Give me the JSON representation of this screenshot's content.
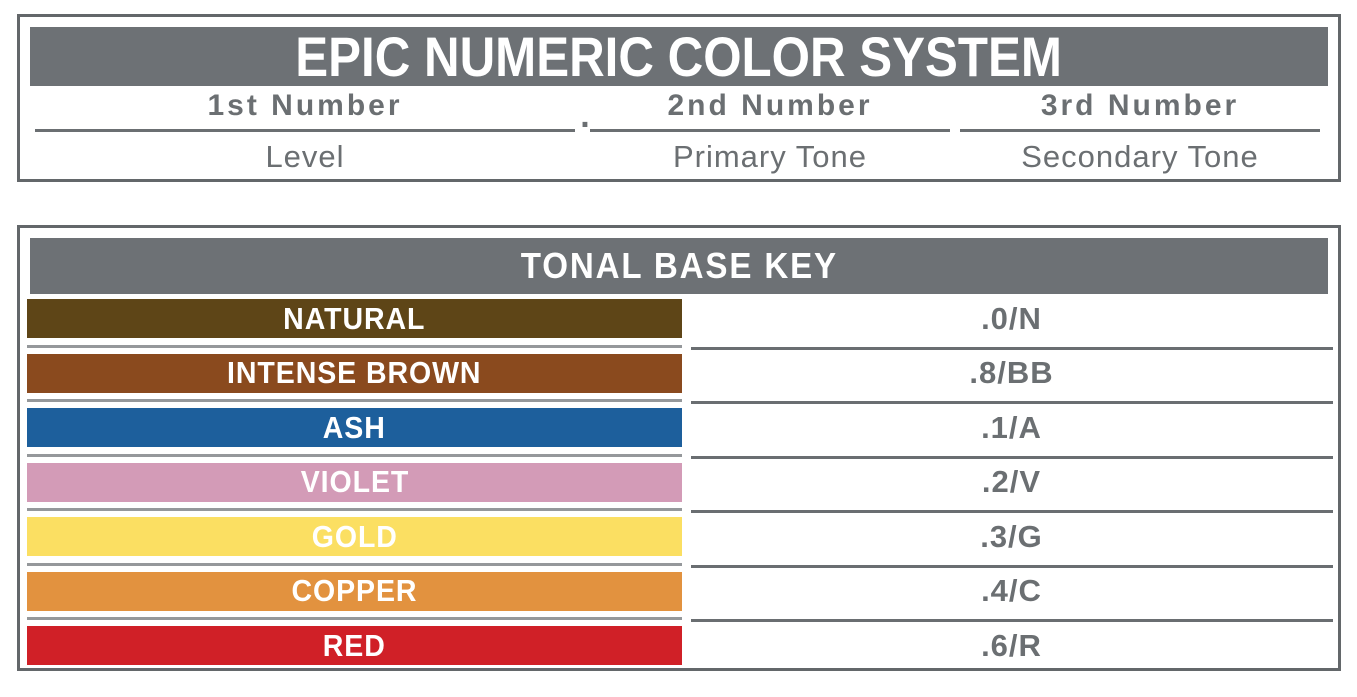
{
  "top_panel": {
    "title": "EPIC NUMERIC COLOR SYSTEM",
    "separator": ".",
    "columns": [
      {
        "heading": "1st Number",
        "label": "Level"
      },
      {
        "heading": "2nd Number",
        "label": "Primary Tone"
      },
      {
        "heading": "3rd Number",
        "label": "Secondary Tone"
      }
    ]
  },
  "key_panel": {
    "title": "TONAL BASE KEY",
    "rows": [
      {
        "name": "NATURAL",
        "code": ".0/N",
        "color": "#5e4517"
      },
      {
        "name": "INTENSE BROWN",
        "code": ".8/BB",
        "color": "#8a4a1e"
      },
      {
        "name": "ASH",
        "code": ".1/A",
        "color": "#1d5f9c"
      },
      {
        "name": "VIOLET",
        "code": ".2/V",
        "color": "#d39bb7"
      },
      {
        "name": "GOLD",
        "code": ".3/G",
        "color": "#fbdf62"
      },
      {
        "name": "COPPER",
        "code": ".4/C",
        "color": "#e2923f"
      },
      {
        "name": "RED",
        "code": ".6/R",
        "color": "#d02027"
      }
    ]
  },
  "palette": {
    "band_gray": "#6d7175",
    "border_gray": "#63676a",
    "text_gray": "#6b6f72"
  }
}
